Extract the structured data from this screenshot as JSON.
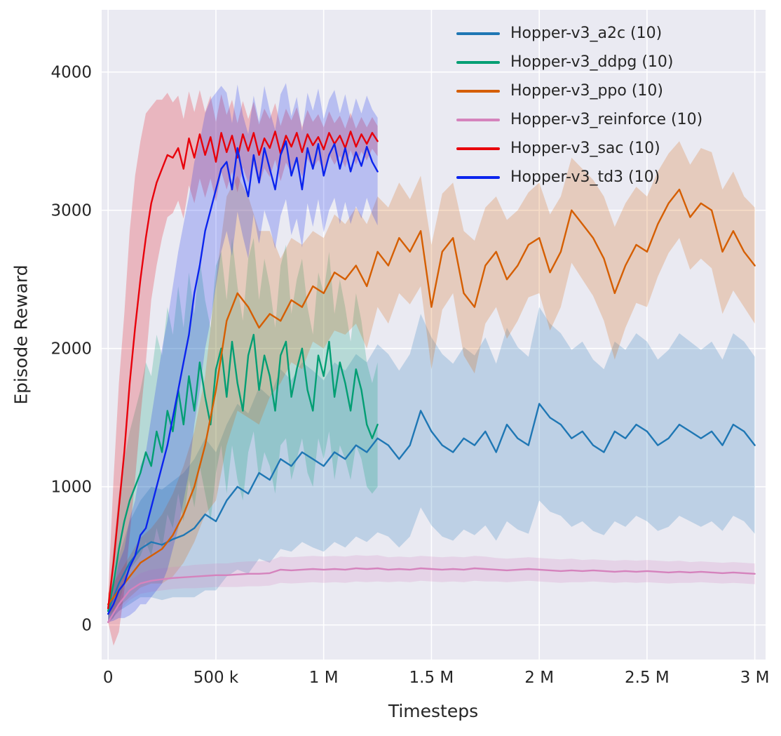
{
  "chart_data": {
    "type": "line",
    "title": "",
    "xlabel": "Timesteps",
    "ylabel": "Episode Reward",
    "xlim": [
      -30000,
      3050000
    ],
    "ylim": [
      -250,
      4450
    ],
    "grid": true,
    "legend_position": "upper right",
    "background": "#eaeaf2",
    "grid_color": "#ffffff",
    "text_color": "#262626",
    "xticks": [
      {
        "v": 0,
        "label": "0"
      },
      {
        "v": 500000,
        "label": "500 k"
      },
      {
        "v": 1000000,
        "label": "1 M"
      },
      {
        "v": 1500000,
        "label": "1.5 M"
      },
      {
        "v": 2000000,
        "label": "2 M"
      },
      {
        "v": 2500000,
        "label": "2.5 M"
      },
      {
        "v": 3000000,
        "label": "3 M"
      }
    ],
    "yticks": [
      {
        "v": 0,
        "label": "0"
      },
      {
        "v": 1000,
        "label": "1000"
      },
      {
        "v": 2000,
        "label": "2000"
      },
      {
        "v": 3000,
        "label": "3000"
      },
      {
        "v": 4000,
        "label": "4000"
      }
    ],
    "series": [
      {
        "key": "a2c",
        "name": "Hopper-v3_a2c (10)",
        "color": "#1f77b4",
        "x_start": 0,
        "x_step": 50000,
        "y": [
          100,
          300,
          450,
          550,
          600,
          580,
          620,
          650,
          700,
          800,
          750,
          900,
          1000,
          950,
          1100,
          1050,
          1200,
          1150,
          1250,
          1200,
          1150,
          1250,
          1200,
          1300,
          1250,
          1350,
          1300,
          1200,
          1300,
          1550,
          1400,
          1300,
          1250,
          1350,
          1300,
          1400,
          1250,
          1450,
          1350,
          1300,
          1600,
          1500,
          1450,
          1350,
          1400,
          1300,
          1250,
          1400,
          1350,
          1450,
          1400,
          1300,
          1350,
          1450,
          1400,
          1350,
          1400,
          1300,
          1450,
          1400,
          1300
        ],
        "spread": [
          80,
          200,
          300,
          350,
          400,
          400,
          420,
          450,
          500,
          550,
          500,
          550,
          600,
          580,
          620,
          600,
          650,
          620,
          650,
          640,
          620,
          650,
          640,
          660,
          650,
          680,
          660,
          640,
          660,
          700,
          680,
          660,
          640,
          660,
          650,
          680,
          640,
          700,
          660,
          640,
          700,
          680,
          660,
          640,
          650,
          620,
          600,
          650,
          640,
          660,
          650,
          620,
          640,
          660,
          650,
          640,
          650,
          620,
          660,
          650,
          640
        ]
      },
      {
        "key": "ddpg",
        "name": "Hopper-v3_ddpg (10)",
        "color": "#029e73",
        "x_start": 0,
        "x_step": 25000,
        "y": [
          100,
          300,
          550,
          750,
          900,
          1000,
          1100,
          1250,
          1150,
          1400,
          1250,
          1550,
          1400,
          1700,
          1450,
          1800,
          1550,
          1900,
          1650,
          1450,
          1850,
          2000,
          1650,
          2050,
          1750,
          1550,
          1950,
          2100,
          1700,
          1950,
          1800,
          1550,
          1950,
          2050,
          1650,
          1850,
          2000,
          1700,
          1550,
          1950,
          1800,
          2050,
          1650,
          1900,
          1750,
          1550,
          1850,
          1700,
          1450,
          1350,
          1450
        ],
        "spread": [
          80,
          250,
          400,
          450,
          500,
          550,
          600,
          650,
          650,
          700,
          700,
          750,
          700,
          750,
          700,
          750,
          700,
          750,
          700,
          700,
          750,
          700,
          700,
          750,
          700,
          650,
          700,
          700,
          650,
          700,
          650,
          600,
          650,
          700,
          600,
          650,
          650,
          600,
          550,
          600,
          600,
          650,
          600,
          600,
          550,
          500,
          550,
          500,
          450,
          400,
          450
        ]
      },
      {
        "key": "ppo",
        "name": "Hopper-v3_ppo (10)",
        "color": "#d55e00",
        "x_start": 0,
        "x_step": 50000,
        "y": [
          150,
          250,
          350,
          450,
          500,
          550,
          650,
          800,
          1000,
          1300,
          1700,
          2200,
          2400,
          2300,
          2150,
          2250,
          2200,
          2350,
          2300,
          2450,
          2400,
          2550,
          2500,
          2600,
          2450,
          2700,
          2600,
          2800,
          2700,
          2850,
          2300,
          2700,
          2800,
          2400,
          2300,
          2600,
          2700,
          2500,
          2600,
          2750,
          2800,
          2550,
          2700,
          3000,
          2900,
          2800,
          2650,
          2400,
          2600,
          2750,
          2700,
          2900,
          3050,
          3150,
          2950,
          3050,
          3000,
          2700,
          2850,
          2700,
          2600
        ],
        "spread": [
          80,
          120,
          150,
          180,
          200,
          250,
          300,
          350,
          400,
          500,
          800,
          900,
          850,
          800,
          700,
          600,
          450,
          450,
          450,
          400,
          400,
          420,
          400,
          420,
          450,
          400,
          420,
          400,
          380,
          400,
          450,
          420,
          400,
          450,
          480,
          420,
          400,
          430,
          400,
          380,
          400,
          420,
          400,
          380,
          400,
          420,
          450,
          480,
          450,
          420,
          400,
          380,
          360,
          350,
          380,
          400,
          420,
          450,
          430,
          400,
          420
        ]
      },
      {
        "key": "reinforce",
        "name": "Hopper-v3_reinforce (10)",
        "color": "#d583bd",
        "x_start": 0,
        "x_step": 50000,
        "y": [
          20,
          150,
          250,
          300,
          320,
          330,
          340,
          345,
          350,
          355,
          360,
          360,
          365,
          370,
          370,
          375,
          400,
          395,
          400,
          405,
          400,
          405,
          400,
          410,
          405,
          410,
          400,
          405,
          400,
          410,
          405,
          400,
          405,
          400,
          410,
          405,
          400,
          395,
          400,
          405,
          400,
          395,
          390,
          395,
          390,
          395,
          390,
          385,
          390,
          385,
          390,
          385,
          380,
          385,
          380,
          385,
          380,
          375,
          380,
          375,
          370
        ],
        "spread": [
          15,
          50,
          70,
          75,
          80,
          80,
          80,
          80,
          85,
          85,
          85,
          85,
          90,
          90,
          90,
          90,
          95,
          95,
          95,
          95,
          95,
          95,
          95,
          95,
          95,
          95,
          90,
          90,
          90,
          90,
          90,
          90,
          90,
          90,
          90,
          90,
          85,
          85,
          85,
          85,
          85,
          85,
          85,
          85,
          80,
          80,
          80,
          80,
          80,
          80,
          80,
          80,
          80,
          80,
          75,
          75,
          75,
          75,
          75,
          75,
          75
        ]
      },
      {
        "key": "sac",
        "name": "Hopper-v3_sac (10)",
        "color": "#e8000b",
        "x_start": 0,
        "x_step": 25000,
        "y": [
          120,
          450,
          850,
          1250,
          1750,
          2150,
          2500,
          2800,
          3050,
          3200,
          3300,
          3400,
          3380,
          3450,
          3300,
          3520,
          3380,
          3550,
          3400,
          3530,
          3350,
          3560,
          3420,
          3540,
          3380,
          3550,
          3430,
          3560,
          3400,
          3520,
          3450,
          3570,
          3410,
          3540,
          3460,
          3560,
          3420,
          3550,
          3470,
          3530,
          3440,
          3560,
          3480,
          3540,
          3450,
          3570,
          3460,
          3550,
          3480,
          3560,
          3500
        ],
        "spread": [
          100,
          600,
          900,
          1000,
          1100,
          1100,
          1000,
          900,
          700,
          600,
          500,
          450,
          400,
          380,
          360,
          340,
          330,
          320,
          310,
          300,
          290,
          280,
          270,
          260,
          250,
          240,
          230,
          225,
          220,
          215,
          210,
          205,
          200,
          195,
          190,
          185,
          180,
          175,
          170,
          165,
          160,
          155,
          150,
          145,
          140,
          135,
          130,
          125,
          120,
          115,
          110
        ]
      },
      {
        "key": "td3",
        "name": "Hopper-v3_td3 (10)",
        "color": "#0b24ee",
        "x_start": 0,
        "x_step": 25000,
        "y": [
          80,
          150,
          250,
          300,
          420,
          500,
          650,
          700,
          850,
          1000,
          1150,
          1300,
          1500,
          1700,
          1900,
          2100,
          2400,
          2600,
          2850,
          3000,
          3150,
          3300,
          3350,
          3150,
          3450,
          3250,
          3100,
          3400,
          3200,
          3450,
          3300,
          3150,
          3400,
          3500,
          3250,
          3380,
          3150,
          3450,
          3300,
          3480,
          3250,
          3400,
          3480,
          3300,
          3450,
          3280,
          3420,
          3320,
          3460,
          3350,
          3280
        ],
        "spread": [
          60,
          120,
          200,
          250,
          350,
          400,
          500,
          550,
          650,
          750,
          850,
          900,
          950,
          1000,
          1000,
          1000,
          950,
          900,
          850,
          800,
          700,
          600,
          500,
          480,
          460,
          440,
          450,
          430,
          440,
          450,
          420,
          430,
          440,
          420,
          430,
          440,
          420,
          400,
          420,
          400,
          410,
          400,
          390,
          400,
          390,
          380,
          390,
          380,
          370,
          380,
          390
        ]
      }
    ]
  }
}
